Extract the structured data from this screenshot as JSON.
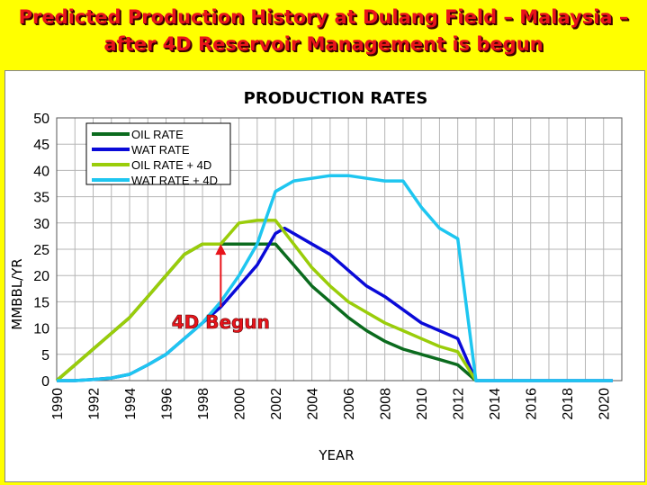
{
  "slide": {
    "title_line1": "Predicted Production History at  Dulang Field – Malaysia –",
    "title_line2": "after 4D Reservoir Management is begun"
  },
  "colors": {
    "background": "#ffff00",
    "title": "#e8141b",
    "annotation": "#e8141b"
  },
  "chart_data": {
    "type": "line",
    "title": "PRODUCTION RATES",
    "xlabel": "YEAR",
    "ylabel": "MMBBL/YR",
    "xlim": [
      1990,
      2021
    ],
    "ylim": [
      0,
      50
    ],
    "y_ticks": [
      0,
      5,
      10,
      15,
      20,
      25,
      30,
      35,
      40,
      45,
      50
    ],
    "x_ticks": [
      1990,
      1992,
      1994,
      1996,
      1998,
      2000,
      2002,
      2004,
      2006,
      2008,
      2010,
      2012,
      2014,
      2016,
      2018,
      2020
    ],
    "grid": true,
    "legend_position": "top-left",
    "series": [
      {
        "name": "OIL RATE",
        "color": "#0b6b1e",
        "points": [
          [
            1990,
            0
          ],
          [
            1991,
            3
          ],
          [
            1992,
            6
          ],
          [
            1993,
            9
          ],
          [
            1994,
            12
          ],
          [
            1995,
            16
          ],
          [
            1996,
            20
          ],
          [
            1997,
            24
          ],
          [
            1998,
            26
          ],
          [
            1999,
            26
          ],
          [
            2000,
            26
          ],
          [
            2001,
            26
          ],
          [
            2002,
            26
          ],
          [
            2003,
            22
          ],
          [
            2004,
            18
          ],
          [
            2005,
            15
          ],
          [
            2006,
            12
          ],
          [
            2007,
            9.5
          ],
          [
            2008,
            7.5
          ],
          [
            2009,
            6
          ],
          [
            2010,
            5
          ],
          [
            2011,
            4
          ],
          [
            2012,
            3
          ],
          [
            2013,
            0
          ]
        ]
      },
      {
        "name": "WAT RATE",
        "color": "#0a0ad8",
        "points": [
          [
            1990,
            0
          ],
          [
            1991,
            0
          ],
          [
            1992,
            0.2
          ],
          [
            1993,
            0.5
          ],
          [
            1994,
            1.2
          ],
          [
            1995,
            3
          ],
          [
            1996,
            5
          ],
          [
            1997,
            8
          ],
          [
            1998,
            11
          ],
          [
            1999,
            14
          ],
          [
            2000,
            18
          ],
          [
            2001,
            22
          ],
          [
            2002,
            28
          ],
          [
            2002.5,
            29
          ],
          [
            2003,
            28
          ],
          [
            2004,
            26
          ],
          [
            2005,
            24
          ],
          [
            2006,
            21
          ],
          [
            2007,
            18
          ],
          [
            2008,
            16
          ],
          [
            2009,
            13.5
          ],
          [
            2010,
            11
          ],
          [
            2011,
            9.5
          ],
          [
            2012,
            8
          ],
          [
            2013,
            0
          ],
          [
            2014,
            0
          ],
          [
            2016,
            0
          ],
          [
            2018,
            0
          ],
          [
            2020,
            0
          ],
          [
            2020.5,
            0
          ]
        ]
      },
      {
        "name": "OIL RATE + 4D",
        "color": "#9acd0a",
        "points": [
          [
            1990,
            0
          ],
          [
            1991,
            3
          ],
          [
            1992,
            6
          ],
          [
            1993,
            9
          ],
          [
            1994,
            12
          ],
          [
            1995,
            16
          ],
          [
            1996,
            20
          ],
          [
            1997,
            24
          ],
          [
            1998,
            26
          ],
          [
            1999,
            26
          ],
          [
            2000,
            30
          ],
          [
            2001,
            30.5
          ],
          [
            2002,
            30.5
          ],
          [
            2003,
            26
          ],
          [
            2004,
            21.5
          ],
          [
            2005,
            18
          ],
          [
            2006,
            15
          ],
          [
            2007,
            13
          ],
          [
            2008,
            11
          ],
          [
            2009,
            9.5
          ],
          [
            2010,
            8
          ],
          [
            2011,
            6.5
          ],
          [
            2012,
            5.5
          ],
          [
            2013,
            0
          ]
        ]
      },
      {
        "name": "WAT RATE + 4D",
        "color": "#1ec6f0",
        "points": [
          [
            1990,
            0
          ],
          [
            1991,
            0
          ],
          [
            1992,
            0.2
          ],
          [
            1993,
            0.5
          ],
          [
            1994,
            1.2
          ],
          [
            1995,
            3
          ],
          [
            1996,
            5
          ],
          [
            1997,
            8
          ],
          [
            1998,
            11
          ],
          [
            1999,
            15
          ],
          [
            2000,
            20
          ],
          [
            2001,
            26
          ],
          [
            2002,
            36
          ],
          [
            2003,
            38
          ],
          [
            2004,
            38.5
          ],
          [
            2005,
            39
          ],
          [
            2006,
            39
          ],
          [
            2007,
            38.5
          ],
          [
            2008,
            38
          ],
          [
            2009,
            38
          ],
          [
            2010,
            33
          ],
          [
            2011,
            29
          ],
          [
            2012,
            27
          ],
          [
            2013,
            0
          ],
          [
            2014,
            0
          ],
          [
            2016,
            0
          ],
          [
            2018,
            0
          ],
          [
            2020,
            0
          ],
          [
            2020.5,
            0
          ]
        ]
      }
    ],
    "annotation": {
      "text": "4D Begun",
      "arrow_x": 1999,
      "arrow_from_y": 14,
      "arrow_to_y": 26
    }
  }
}
